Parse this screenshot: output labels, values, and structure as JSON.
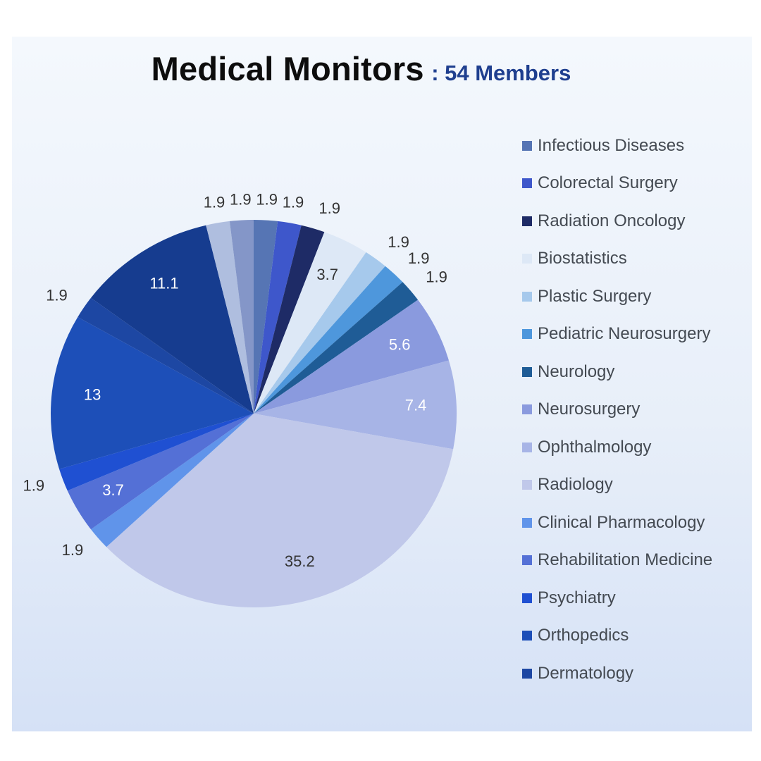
{
  "header": {
    "title": "Medical Monitors",
    "subtitle": ": 54 Members"
  },
  "chart_data": {
    "type": "pie",
    "title": "Medical Monitors",
    "subtitle": ": 54 Members",
    "legend_position": "right",
    "start_angle_deg": 0,
    "direction": "clockwise",
    "slices": [
      {
        "label": "Infectious Diseases",
        "value": 1.9,
        "color": "#5675b4"
      },
      {
        "label": "Colorectal Surgery",
        "value": 1.9,
        "color": "#3e57cb"
      },
      {
        "label": "Radiation Oncology",
        "value": 1.9,
        "color": "#1e2b66"
      },
      {
        "label": "Biostatistics",
        "value": 3.7,
        "color": "#dde8f6"
      },
      {
        "label": "Plastic Surgery",
        "value": 1.9,
        "color": "#a6c9ec"
      },
      {
        "label": "Pediatric Neurosurgery",
        "value": 1.9,
        "color": "#4e97dc"
      },
      {
        "label": "Neurology",
        "value": 1.9,
        "color": "#1f5c96"
      },
      {
        "label": "Neurosurgery",
        "value": 5.6,
        "color": "#8a9ade"
      },
      {
        "label": "Ophthalmology",
        "value": 7.4,
        "color": "#a7b4e6"
      },
      {
        "label": "Radiology",
        "value": 35.2,
        "color": "#c0c8ea"
      },
      {
        "label": "Clinical Pharmacology",
        "value": 1.9,
        "color": "#6094ea"
      },
      {
        "label": "Rehabilitation Medicine",
        "value": 3.7,
        "color": "#5470d6"
      },
      {
        "label": "Psychiatry",
        "value": 1.9,
        "color": "#1f50d2"
      },
      {
        "label": "Orthopedics",
        "value": 13,
        "color": "#1d4fb8"
      },
      {
        "label": "Dermatology",
        "value": 1.9,
        "color": "#1d47a3"
      },
      {
        "label": "",
        "value": 11.1,
        "color": "#163c8f"
      },
      {
        "label": "",
        "value": 1.9,
        "color": "#afbedf"
      },
      {
        "label": "",
        "value": 1.9,
        "color": "#8496c8"
      }
    ]
  }
}
